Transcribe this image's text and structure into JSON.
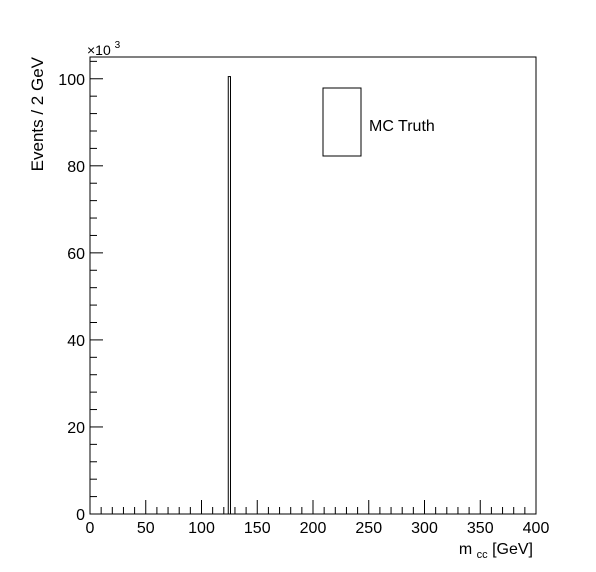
{
  "chart_data": {
    "type": "bar",
    "xlabel_main": "m",
    "xlabel_sub": "cc",
    "xlabel_unit": " [GeV]",
    "ylabel": "Events / 2 GeV",
    "exponent_base": "×10",
    "exponent_power": "3",
    "xlim": [
      0,
      400
    ],
    "ylim": [
      0,
      105
    ],
    "x_ticks": [
      0,
      50,
      100,
      150,
      200,
      250,
      300,
      350,
      400
    ],
    "x_tick_labels": [
      "0",
      "50",
      "100",
      "150",
      "200",
      "250",
      "300",
      "350",
      "400"
    ],
    "y_ticks": [
      0,
      20,
      40,
      60,
      80,
      100
    ],
    "y_tick_labels": [
      "0",
      "20",
      "40",
      "60",
      "80",
      "100"
    ],
    "bin_width": 2,
    "bins": [
      {
        "x_low": 124,
        "x_high": 126,
        "value": 100.5
      }
    ],
    "legend": {
      "label": "MC Truth",
      "position": "top-right"
    },
    "colors": {
      "line": "#000000",
      "fill": "#ffffff"
    }
  }
}
